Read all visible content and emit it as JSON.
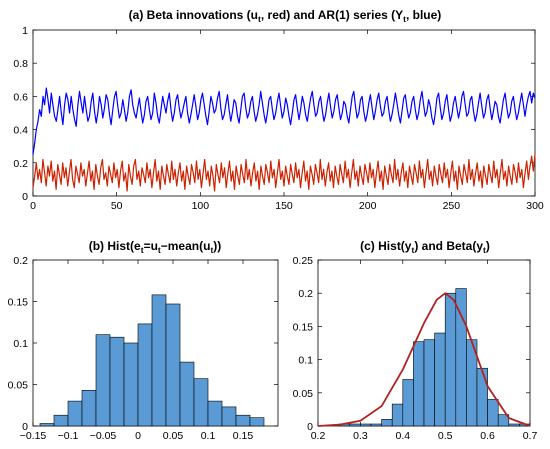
{
  "chart_data": [
    {
      "type": "line",
      "title_parts": [
        "(a) Beta innovations (u",
        "t",
        ", red) and AR(1) series (Y",
        "t",
        ", blue)"
      ],
      "xlim": [
        0,
        300
      ],
      "ylim": [
        0,
        1
      ],
      "x_ticks": [
        "0",
        "50",
        "100",
        "150",
        "200",
        "250",
        "300"
      ],
      "y_ticks": [
        "0",
        "0.2",
        "0.4",
        "0.6",
        "0.8",
        "1"
      ],
      "x_tick_values": [
        0,
        50,
        100,
        150,
        200,
        250,
        300
      ],
      "y_tick_values": [
        0,
        0.2,
        0.4,
        0.6,
        0.8,
        1
      ],
      "grid": false,
      "series": [
        {
          "name": "Y_t",
          "color": "#0000ff",
          "values": [
            0.25,
            0.32,
            0.4,
            0.45,
            0.52,
            0.48,
            0.6,
            0.55,
            0.65,
            0.58,
            0.5,
            0.62,
            0.55,
            0.48,
            0.45,
            0.52,
            0.6,
            0.5,
            0.43,
            0.55,
            0.62,
            0.58,
            0.5,
            0.6,
            0.52,
            0.46,
            0.42,
            0.55,
            0.63,
            0.56,
            0.5,
            0.6,
            0.52,
            0.45,
            0.48,
            0.57,
            0.62,
            0.51,
            0.44,
            0.5,
            0.6,
            0.55,
            0.47,
            0.53,
            0.61,
            0.58,
            0.49,
            0.43,
            0.52,
            0.6,
            0.63,
            0.54,
            0.47,
            0.5,
            0.58,
            0.52,
            0.45,
            0.5,
            0.6,
            0.64,
            0.55,
            0.5,
            0.47,
            0.53,
            0.59,
            0.51,
            0.44,
            0.49,
            0.57,
            0.6,
            0.52,
            0.46,
            0.5,
            0.62,
            0.56,
            0.48,
            0.44,
            0.52,
            0.6,
            0.55,
            0.5,
            0.57,
            0.62,
            0.52,
            0.45,
            0.5,
            0.58,
            0.61,
            0.53,
            0.47,
            0.51,
            0.56,
            0.6,
            0.5,
            0.44,
            0.49,
            0.55,
            0.61,
            0.54,
            0.46,
            0.5,
            0.58,
            0.62,
            0.55,
            0.48,
            0.43,
            0.51,
            0.6,
            0.56,
            0.5,
            0.52,
            0.59,
            0.63,
            0.53,
            0.46,
            0.49,
            0.55,
            0.61,
            0.52,
            0.45,
            0.51,
            0.58,
            0.56,
            0.48,
            0.44,
            0.52,
            0.6,
            0.62,
            0.53,
            0.47,
            0.5,
            0.57,
            0.6,
            0.51,
            0.45,
            0.49,
            0.55,
            0.63,
            0.56,
            0.49,
            0.44,
            0.5,
            0.58,
            0.6,
            0.52,
            0.46,
            0.5,
            0.57,
            0.62,
            0.54,
            0.47,
            0.51,
            0.59,
            0.55,
            0.48,
            0.43,
            0.5,
            0.58,
            0.61,
            0.53,
            0.46,
            0.52,
            0.6,
            0.56,
            0.49,
            0.45,
            0.52,
            0.59,
            0.63,
            0.55,
            0.48,
            0.5,
            0.57,
            0.6,
            0.52,
            0.45,
            0.49,
            0.56,
            0.62,
            0.54,
            0.47,
            0.51,
            0.58,
            0.61,
            0.53,
            0.46,
            0.5,
            0.57,
            0.55,
            0.48,
            0.44,
            0.52,
            0.6,
            0.63,
            0.54,
            0.47,
            0.5,
            0.58,
            0.6,
            0.51,
            0.45,
            0.49,
            0.56,
            0.61,
            0.53,
            0.46,
            0.51,
            0.58,
            0.62,
            0.54,
            0.48,
            0.5,
            0.57,
            0.6,
            0.52,
            0.45,
            0.49,
            0.55,
            0.62,
            0.56,
            0.49,
            0.44,
            0.51,
            0.59,
            0.61,
            0.53,
            0.47,
            0.5,
            0.57,
            0.6,
            0.52,
            0.46,
            0.5,
            0.58,
            0.63,
            0.55,
            0.48,
            0.51,
            0.58,
            0.54,
            0.47,
            0.43,
            0.5,
            0.59,
            0.62,
            0.53,
            0.46,
            0.5,
            0.57,
            0.61,
            0.52,
            0.45,
            0.49,
            0.56,
            0.6,
            0.53,
            0.47,
            0.52,
            0.6,
            0.63,
            0.55,
            0.48,
            0.5,
            0.58,
            0.6,
            0.51,
            0.45,
            0.49,
            0.56,
            0.62,
            0.54,
            0.47,
            0.5,
            0.58,
            0.61,
            0.53,
            0.46,
            0.51,
            0.57,
            0.55,
            0.48,
            0.44,
            0.51,
            0.58,
            0.62,
            0.54,
            0.47,
            0.5,
            0.57,
            0.6,
            0.52,
            0.46,
            0.5,
            0.56,
            0.62,
            0.55,
            0.48,
            0.55,
            0.6,
            0.63,
            0.56,
            0.62,
            0.59
          ]
        },
        {
          "name": "u_t",
          "color": "#cc2200",
          "values": [
            0.05,
            0.12,
            0.2,
            0.1,
            0.16,
            0.08,
            0.22,
            0.14,
            0.06,
            0.18,
            0.12,
            0.21,
            0.09,
            0.15,
            0.04,
            0.19,
            0.13,
            0.07,
            0.2,
            0.11,
            0.17,
            0.06,
            0.14,
            0.22,
            0.1,
            0.05,
            0.18,
            0.13,
            0.08,
            0.2,
            0.12,
            0.16,
            0.06,
            0.14,
            0.21,
            0.09,
            0.15,
            0.04,
            0.19,
            0.12,
            0.07,
            0.17,
            0.22,
            0.1,
            0.14,
            0.06,
            0.18,
            0.13,
            0.08,
            0.2,
            0.11,
            0.16,
            0.05,
            0.15,
            0.21,
            0.09,
            0.14,
            0.03,
            0.19,
            0.12,
            0.07,
            0.18,
            0.22,
            0.1,
            0.15,
            0.06,
            0.17,
            0.13,
            0.08,
            0.2,
            0.11,
            0.16,
            0.05,
            0.14,
            0.22,
            0.09,
            0.15,
            0.04,
            0.18,
            0.12,
            0.07,
            0.19,
            0.13,
            0.08,
            0.21,
            0.1,
            0.16,
            0.06,
            0.14,
            0.2,
            0.09,
            0.15,
            0.04,
            0.18,
            0.12,
            0.07,
            0.19,
            0.14,
            0.08,
            0.21,
            0.1,
            0.16,
            0.05,
            0.14,
            0.22,
            0.1,
            0.15,
            0.06,
            0.18,
            0.12,
            0.03,
            0.19,
            0.13,
            0.08,
            0.2,
            0.11,
            0.17,
            0.05,
            0.14,
            0.21,
            0.09,
            0.15,
            0.04,
            0.18,
            0.12,
            0.07,
            0.19,
            0.13,
            0.08,
            0.22,
            0.1,
            0.16,
            0.06,
            0.14,
            0.2,
            0.09,
            0.15,
            0.04,
            0.18,
            0.12,
            0.07,
            0.19,
            0.14,
            0.08,
            0.21,
            0.11,
            0.16,
            0.05,
            0.14,
            0.22,
            0.1,
            0.15,
            0.06,
            0.18,
            0.12,
            0.07,
            0.19,
            0.13,
            0.08,
            0.2,
            0.11,
            0.16,
            0.05,
            0.14,
            0.21,
            0.09,
            0.15,
            0.04,
            0.18,
            0.13,
            0.07,
            0.19,
            0.14,
            0.08,
            0.22,
            0.1,
            0.16,
            0.06,
            0.14,
            0.2,
            0.09,
            0.15,
            0.05,
            0.18,
            0.12,
            0.07,
            0.19,
            0.13,
            0.08,
            0.21,
            0.11,
            0.16,
            0.05,
            0.14,
            0.22,
            0.1,
            0.15,
            0.06,
            0.18,
            0.12,
            0.07,
            0.19,
            0.14,
            0.08,
            0.2,
            0.11,
            0.16,
            0.05,
            0.14,
            0.21,
            0.09,
            0.15,
            0.04,
            0.18,
            0.12,
            0.07,
            0.19,
            0.13,
            0.08,
            0.22,
            0.1,
            0.16,
            0.06,
            0.14,
            0.2,
            0.09,
            0.15,
            0.05,
            0.18,
            0.12,
            0.07,
            0.19,
            0.14,
            0.08,
            0.21,
            0.11,
            0.16,
            0.05,
            0.14,
            0.22,
            0.1,
            0.15,
            0.06,
            0.18,
            0.12,
            0.07,
            0.19,
            0.13,
            0.08,
            0.2,
            0.11,
            0.16,
            0.05,
            0.14,
            0.21,
            0.09,
            0.15,
            0.04,
            0.18,
            0.12,
            0.07,
            0.19,
            0.14,
            0.08,
            0.22,
            0.1,
            0.16,
            0.06,
            0.14,
            0.2,
            0.09,
            0.15,
            0.05,
            0.18,
            0.12,
            0.07,
            0.19,
            0.13,
            0.08,
            0.21,
            0.11,
            0.16,
            0.05,
            0.14,
            0.22,
            0.1,
            0.15,
            0.06,
            0.18,
            0.12,
            0.07,
            0.19,
            0.14,
            0.08,
            0.2,
            0.11,
            0.16,
            0.05,
            0.14,
            0.21,
            0.1,
            0.18,
            0.24,
            0.15,
            0.25
          ]
        }
      ]
    },
    {
      "type": "bar",
      "title_parts": [
        "(b) Hist(e",
        "t",
        "=u",
        "t",
        "−mean(u",
        "t",
        "))"
      ],
      "xlim": [
        -0.15,
        0.2
      ],
      "ylim": [
        0,
        0.2
      ],
      "x_ticks": [
        "−0.15",
        "−0.1",
        "−0.05",
        "0",
        "0.05",
        "0.1",
        "0.15"
      ],
      "y_ticks": [
        "0",
        "0.05",
        "0.1",
        "0.15",
        "0.2"
      ],
      "x_tick_values": [
        -0.15,
        -0.1,
        -0.05,
        0,
        0.05,
        0.1,
        0.15
      ],
      "y_tick_values": [
        0,
        0.05,
        0.1,
        0.15,
        0.2
      ],
      "bin_edges": [
        -0.14,
        -0.12,
        -0.1,
        -0.08,
        -0.06,
        -0.04,
        -0.02,
        0.0,
        0.02,
        0.04,
        0.06,
        0.08,
        0.1,
        0.12,
        0.14,
        0.16,
        0.18
      ],
      "values": [
        0.003,
        0.013,
        0.03,
        0.043,
        0.11,
        0.107,
        0.1,
        0.123,
        0.158,
        0.147,
        0.077,
        0.057,
        0.03,
        0.023,
        0.013,
        0.01
      ],
      "bar_color": "#5b9bd5"
    },
    {
      "type": "bar",
      "title_parts": [
        "(c)  Hist(y",
        "t",
        ") and Beta(y",
        "t",
        ")"
      ],
      "xlim": [
        0.2,
        0.7
      ],
      "ylim": [
        0,
        0.25
      ],
      "x_ticks": [
        "0.2",
        "0.3",
        "0.4",
        "0.5",
        "0.6",
        "0.7"
      ],
      "y_ticks": [
        "0",
        "0.05",
        "0.1",
        "0.15",
        "0.2",
        "0.25"
      ],
      "x_tick_values": [
        0.2,
        0.3,
        0.4,
        0.5,
        0.6,
        0.7
      ],
      "y_tick_values": [
        0,
        0.05,
        0.1,
        0.15,
        0.2,
        0.25
      ],
      "bin_edges": [
        0.25,
        0.275,
        0.3,
        0.325,
        0.35,
        0.375,
        0.4,
        0.425,
        0.45,
        0.475,
        0.5,
        0.525,
        0.55,
        0.575,
        0.6,
        0.625,
        0.65,
        0.675,
        0.7
      ],
      "values": [
        0.003,
        0.003,
        0.003,
        0.003,
        0.01,
        0.033,
        0.07,
        0.127,
        0.13,
        0.14,
        0.2,
        0.207,
        0.13,
        0.087,
        0.04,
        0.017,
        0.003,
        0.003
      ],
      "bar_color": "#5b9bd5",
      "curve": {
        "name": "Beta(y_t)",
        "color": "#b22222",
        "x": [
          0.2,
          0.25,
          0.3,
          0.35,
          0.4,
          0.45,
          0.48,
          0.5,
          0.52,
          0.55,
          0.6,
          0.65,
          0.7
        ],
        "y": [
          0.0,
          0.002,
          0.008,
          0.03,
          0.085,
          0.155,
          0.19,
          0.2,
          0.19,
          0.15,
          0.06,
          0.012,
          0.0
        ]
      }
    }
  ]
}
